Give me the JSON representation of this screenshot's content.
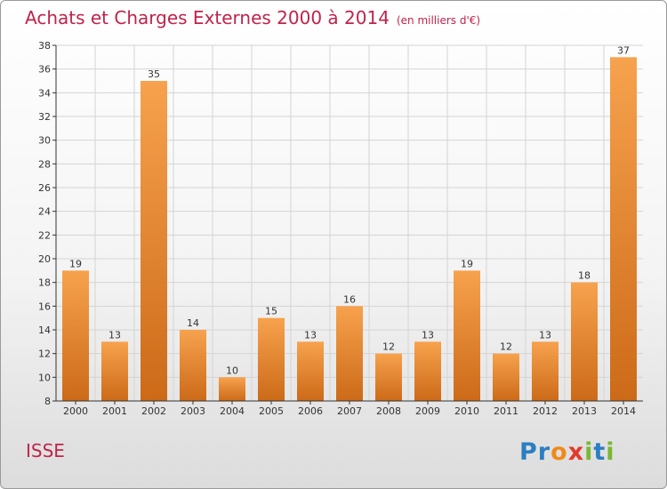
{
  "title": "Achats et Charges Externes 2000 à 2014",
  "subtitle": "(en milliers d'€)",
  "town": "ISSE",
  "brand": "Proxiti",
  "colors": {
    "title": "#c0234a",
    "bar_light": "#f7a24e",
    "bar_dark": "#cc6a18",
    "grid": "#d4d4d4",
    "axis": "#333333"
  },
  "chart_data": {
    "type": "bar",
    "categories": [
      "2000",
      "2001",
      "2002",
      "2003",
      "2004",
      "2005",
      "2006",
      "2007",
      "2008",
      "2009",
      "2010",
      "2011",
      "2012",
      "2013",
      "2014"
    ],
    "values": [
      19,
      13,
      35,
      14,
      10,
      15,
      13,
      16,
      12,
      13,
      19,
      12,
      13,
      18,
      37
    ],
    "ylim": [
      8,
      38
    ],
    "yticks": [
      8,
      10,
      12,
      14,
      16,
      18,
      20,
      22,
      24,
      26,
      28,
      30,
      32,
      34,
      36,
      38
    ],
    "grid": true,
    "xlabel": "",
    "ylabel": ""
  }
}
